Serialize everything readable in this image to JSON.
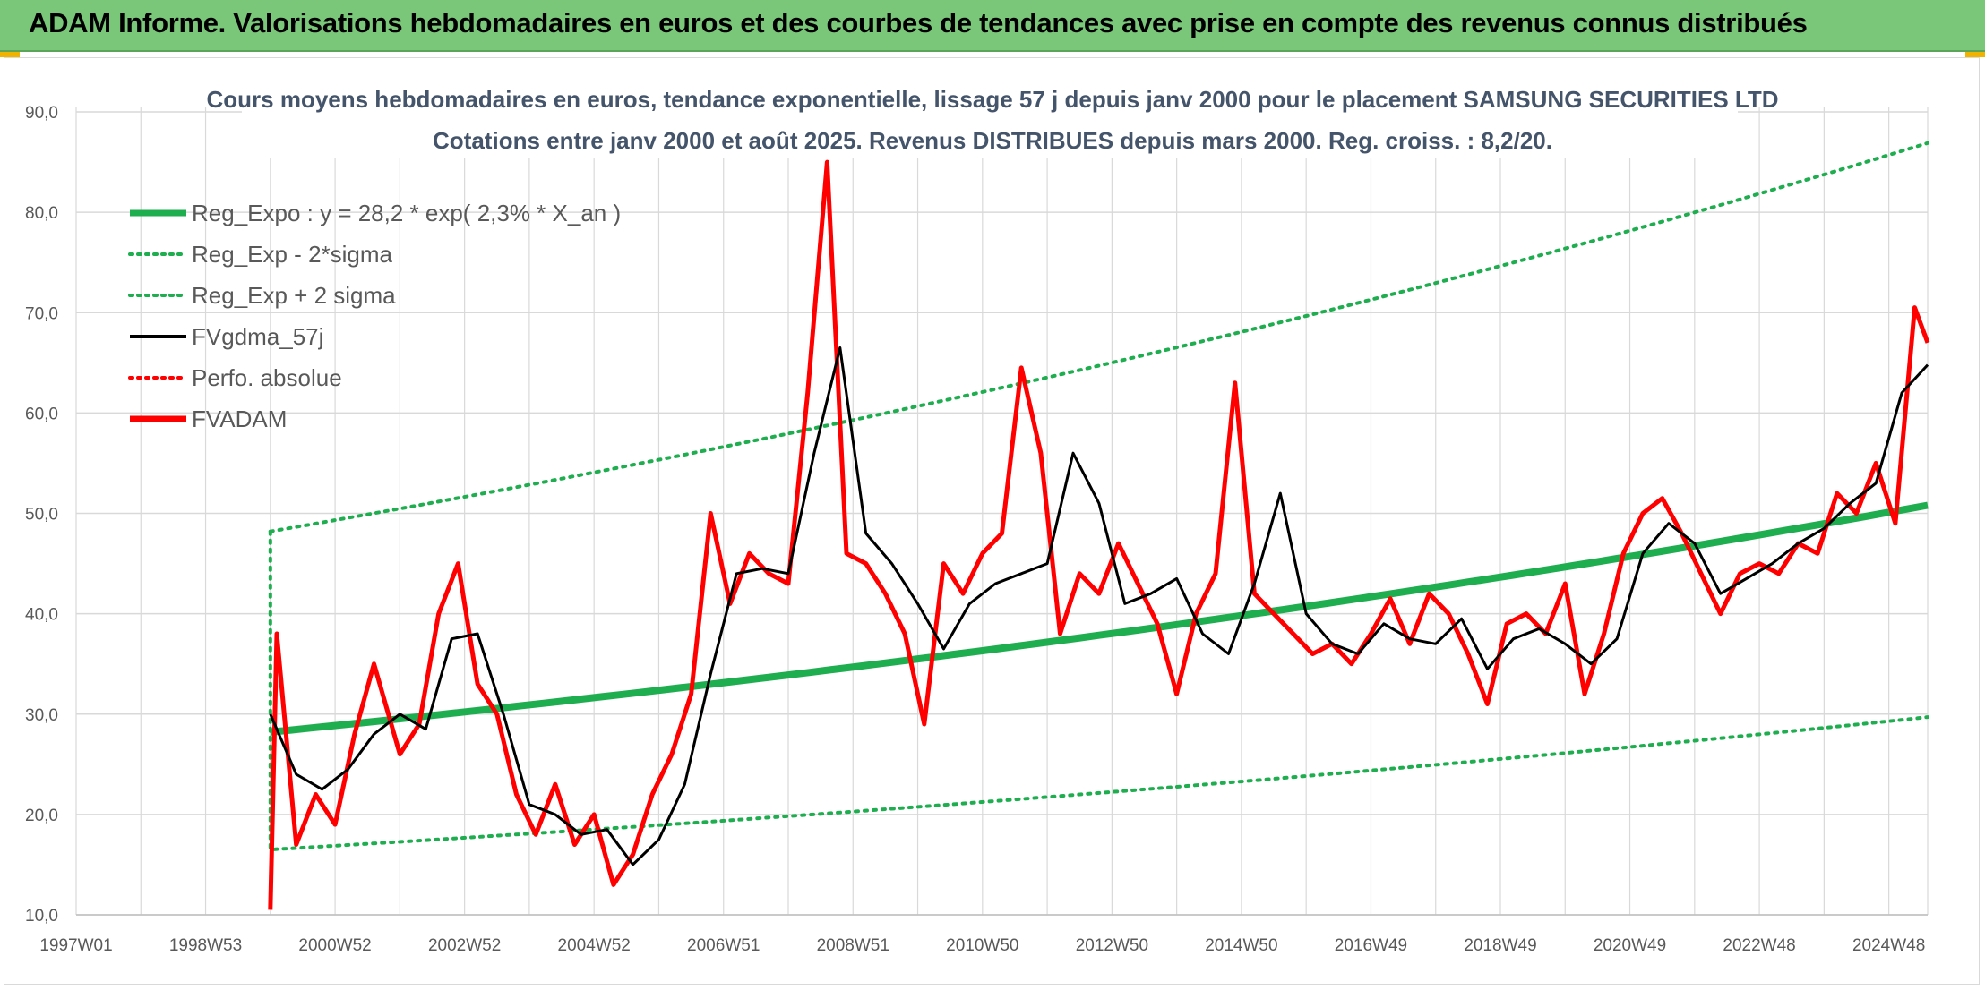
{
  "banner": {
    "title": "ADAM Informe. Valorisations hebdomadaires en euros et des courbes de tendances avec prise en compte des revenus connus distribués"
  },
  "colors": {
    "banner_bg": "#7ac77a",
    "trend": "#1fae4f",
    "fv": "#ff0000",
    "smooth": "#000000",
    "grid": "#d9d9d9"
  },
  "chart_data": {
    "type": "line",
    "title": "Cours moyens hebdomadaires en euros, tendance exponentielle, lissage 57 j depuis janv 2000 pour le placement SAMSUNG SECURITIES LTD",
    "subtitle": "Cotations entre janv 2000 et août 2025. Revenus DISTRIBUES depuis mars 2000. Reg. croiss. : 8,2/20.",
    "xlabel": "",
    "ylabel": "",
    "ylim": [
      10,
      90
    ],
    "xlim": [
      1997.0,
      2025.6
    ],
    "yticks": [
      "10,0",
      "20,0",
      "30,0",
      "40,0",
      "50,0",
      "60,0",
      "70,0",
      "80,0",
      "90,0"
    ],
    "xticks": [
      {
        "label": "1997W01",
        "x": 1997.0
      },
      {
        "label": "1998W53",
        "x": 1999.0
      },
      {
        "label": "2000W52",
        "x": 2001.0
      },
      {
        "label": "2002W52",
        "x": 2003.0
      },
      {
        "label": "2004W52",
        "x": 2005.0
      },
      {
        "label": "2006W51",
        "x": 2007.0
      },
      {
        "label": "2008W51",
        "x": 2009.0
      },
      {
        "label": "2010W50",
        "x": 2011.0
      },
      {
        "label": "2012W50",
        "x": 2013.0
      },
      {
        "label": "2014W50",
        "x": 2015.0
      },
      {
        "label": "2016W49",
        "x": 2017.0
      },
      {
        "label": "2018W49",
        "x": 2019.0
      },
      {
        "label": "2020W49",
        "x": 2021.0
      },
      {
        "label": "2022W48",
        "x": 2023.0
      },
      {
        "label": "2024W48",
        "x": 2025.0
      }
    ],
    "grid": true,
    "legend_position": "top-left",
    "legend": [
      {
        "label": "Reg_Expo : y = 28,2 * exp( 2,3% *  X_an )",
        "style": "solid-thick",
        "color": "#1fae4f"
      },
      {
        "label": "Reg_Exp - 2*sigma",
        "style": "dotted",
        "color": "#1fae4f"
      },
      {
        "label": "Reg_Exp + 2 sigma",
        "style": "dotted",
        "color": "#1fae4f"
      },
      {
        "label": "FVgdma_57j",
        "style": "solid",
        "color": "#000000"
      },
      {
        "label": "Perfo. absolue",
        "style": "dotted",
        "color": "#ff0000"
      },
      {
        "label": "FVADAM",
        "style": "solid-thick",
        "color": "#ff0000"
      }
    ],
    "series": [
      {
        "name": "Reg_Expo : y = 28,2 * exp( 2,3% *  X_an )",
        "x": [
          2000.0,
          2025.6
        ],
        "y": [
          28.2,
          50.8
        ],
        "curve": "exponential"
      },
      {
        "name": "Reg_Exp - 2*sigma",
        "x": [
          2000.0,
          2025.6
        ],
        "y": [
          16.5,
          29.7
        ],
        "curve": "exponential",
        "start_from": 48.2
      },
      {
        "name": "Reg_Exp + 2 sigma",
        "x": [
          2000.0,
          2025.6
        ],
        "y": [
          48.2,
          86.9
        ],
        "curve": "exponential"
      },
      {
        "name": "FVgdma_57j",
        "x": [
          2000.0,
          2000.4,
          2000.8,
          2001.2,
          2001.6,
          2002.0,
          2002.4,
          2002.8,
          2003.2,
          2003.6,
          2004.0,
          2004.4,
          2004.8,
          2005.2,
          2005.6,
          2006.0,
          2006.4,
          2006.8,
          2007.2,
          2007.6,
          2008.0,
          2008.4,
          2008.8,
          2009.2,
          2009.6,
          2010.0,
          2010.4,
          2010.8,
          2011.2,
          2011.6,
          2012.0,
          2012.4,
          2012.8,
          2013.2,
          2013.6,
          2014.0,
          2014.4,
          2014.8,
          2015.2,
          2015.6,
          2016.0,
          2016.4,
          2016.8,
          2017.2,
          2017.6,
          2018.0,
          2018.4,
          2018.8,
          2019.2,
          2019.6,
          2020.0,
          2020.4,
          2020.8,
          2021.2,
          2021.6,
          2022.0,
          2022.4,
          2022.8,
          2023.2,
          2023.6,
          2024.0,
          2024.4,
          2024.8,
          2025.2,
          2025.6
        ],
        "y": [
          30.0,
          24.0,
          22.5,
          24.5,
          28.0,
          30.0,
          28.5,
          37.5,
          38.0,
          30.0,
          21.0,
          20.0,
          18.0,
          18.5,
          15.0,
          17.5,
          23.0,
          34.0,
          44.0,
          44.5,
          44.0,
          56.0,
          66.5,
          48.0,
          45.0,
          41.0,
          36.5,
          41.0,
          43.0,
          44.0,
          45.0,
          56.0,
          51.0,
          41.0,
          42.0,
          43.5,
          38.0,
          36.0,
          43.0,
          52.0,
          40.0,
          37.0,
          36.0,
          39.0,
          37.5,
          37.0,
          39.5,
          34.5,
          37.5,
          38.5,
          37.0,
          35.0,
          37.5,
          46.0,
          49.0,
          47.0,
          42.0,
          43.5,
          45.0,
          47.0,
          48.5,
          51.0,
          53.0,
          62.0,
          64.8
        ]
      },
      {
        "name": "FVADAM",
        "x": [
          2000.0,
          2000.1,
          2000.4,
          2000.7,
          2001.0,
          2001.3,
          2001.6,
          2002.0,
          2002.3,
          2002.6,
          2002.9,
          2003.2,
          2003.5,
          2003.8,
          2004.1,
          2004.4,
          2004.7,
          2005.0,
          2005.3,
          2005.6,
          2005.9,
          2006.2,
          2006.5,
          2006.8,
          2007.1,
          2007.4,
          2007.7,
          2008.0,
          2008.3,
          2008.6,
          2008.9,
          2009.2,
          2009.5,
          2009.8,
          2010.1,
          2010.4,
          2010.7,
          2011.0,
          2011.3,
          2011.6,
          2011.9,
          2012.2,
          2012.5,
          2012.8,
          2013.1,
          2013.4,
          2013.7,
          2014.0,
          2014.3,
          2014.6,
          2014.9,
          2015.2,
          2015.5,
          2015.8,
          2016.1,
          2016.4,
          2016.7,
          2017.0,
          2017.3,
          2017.6,
          2017.9,
          2018.2,
          2018.5,
          2018.8,
          2019.1,
          2019.4,
          2019.7,
          2020.0,
          2020.3,
          2020.6,
          2020.9,
          2021.2,
          2021.5,
          2021.8,
          2022.1,
          2022.4,
          2022.7,
          2023.0,
          2023.3,
          2023.6,
          2023.9,
          2024.2,
          2024.5,
          2024.8,
          2025.1,
          2025.4,
          2025.6
        ],
        "y": [
          10.5,
          38.0,
          17.0,
          22.0,
          19.0,
          28.0,
          35.0,
          26.0,
          29.0,
          40.0,
          45.0,
          33.0,
          30.0,
          22.0,
          18.0,
          23.0,
          17.0,
          20.0,
          13.0,
          16.0,
          22.0,
          26.0,
          32.0,
          50.0,
          41.0,
          46.0,
          44.0,
          43.0,
          62.0,
          85.0,
          46.0,
          45.0,
          42.0,
          38.0,
          29.0,
          45.0,
          42.0,
          46.0,
          48.0,
          64.5,
          56.0,
          38.0,
          44.0,
          42.0,
          47.0,
          43.0,
          39.0,
          32.0,
          40.0,
          44.0,
          63.0,
          42.0,
          40.0,
          38.0,
          36.0,
          37.0,
          35.0,
          38.0,
          41.5,
          37.0,
          42.0,
          40.0,
          36.0,
          31.0,
          39.0,
          40.0,
          38.0,
          43.0,
          32.0,
          38.0,
          46.0,
          50.0,
          51.5,
          48.0,
          44.0,
          40.0,
          44.0,
          45.0,
          44.0,
          47.0,
          46.0,
          52.0,
          50.0,
          55.0,
          49.0,
          70.5,
          67.0
        ]
      }
    ]
  }
}
